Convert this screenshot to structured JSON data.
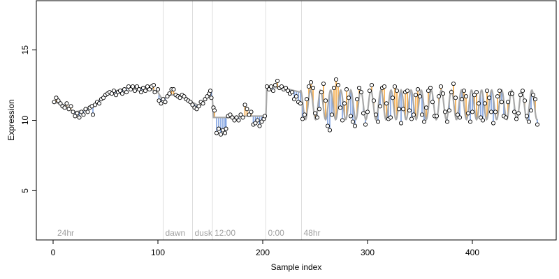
{
  "chart_data": {
    "type": "scatter",
    "xlabel": "Sample index",
    "ylabel": "Expression",
    "xlim": [
      -16,
      480
    ],
    "ylim": [
      1.5,
      18.5
    ],
    "x_ticks": [
      0,
      100,
      200,
      300,
      400
    ],
    "y_ticks": [
      5,
      10,
      15
    ],
    "grid": false,
    "colors": {
      "fitted_line": "#a8a8a8",
      "below_fit_segment": "#7b9fe0",
      "above_fit_segment": "#f4a640",
      "marker_edge": "#000000",
      "marker_fill": "#ffffff",
      "annotation_line": "#dedede",
      "annotation_text": "#a0a0a0"
    },
    "annotations": [
      {
        "label": "24hr",
        "x": 2,
        "line": false
      },
      {
        "label": "dawn",
        "x": 105,
        "line": true
      },
      {
        "label": "dusk",
        "x": 133,
        "line": true
      },
      {
        "label": "12:00",
        "x": 152,
        "line": true
      },
      {
        "label": "0:00",
        "x": 203,
        "line": true
      },
      {
        "label": "48hr",
        "x": 237,
        "line": true
      }
    ],
    "series": [
      {
        "fitted_segments": [
          {
            "x": [
              1,
              10,
              20,
              30,
              40,
              50,
              60,
              70,
              80,
              90,
              100,
              104,
              112,
              120,
              130,
              140,
              150
            ],
            "y": [
              11.3,
              11.1,
              10.6,
              10.7,
              11.2,
              11.8,
              12.1,
              12.3,
              12.3,
              12.3,
              12.0,
              11.5,
              11.8,
              11.8,
              11.4,
              11.0,
              11.9
            ]
          },
          {
            "x": [
              152,
              153,
              170,
              185,
              195,
              203
            ],
            "y": [
              11.5,
              10.2,
              10.2,
              10.3,
              10.3,
              10.3
            ]
          },
          {
            "x": [
              203,
              204,
              215,
              225,
              236
            ],
            "y": [
              10.3,
              12.4,
              12.3,
              12.2,
              12.0
            ]
          }
        ],
        "oscillation": {
          "x_start": 236,
          "x_end": 462,
          "period": 9.6,
          "center": 11.1,
          "amplitude": 1.05
        },
        "points": [
          [
            1,
            11.3
          ],
          [
            3,
            11.6
          ],
          [
            5,
            11.4
          ],
          [
            7,
            11.2
          ],
          [
            9,
            11.0
          ],
          [
            11,
            10.9
          ],
          [
            13,
            11.2
          ],
          [
            15,
            10.8
          ],
          [
            17,
            11.0
          ],
          [
            19,
            10.6
          ],
          [
            21,
            10.3
          ],
          [
            23,
            10.5
          ],
          [
            25,
            10.2
          ],
          [
            27,
            10.6
          ],
          [
            29,
            10.4
          ],
          [
            31,
            10.8
          ],
          [
            33,
            10.6
          ],
          [
            35,
            10.9
          ],
          [
            37,
            11.0
          ],
          [
            38,
            10.4
          ],
          [
            40,
            11.1
          ],
          [
            42,
            11.3
          ],
          [
            44,
            11.2
          ],
          [
            46,
            11.5
          ],
          [
            48,
            11.6
          ],
          [
            50,
            11.8
          ],
          [
            52,
            11.9
          ],
          [
            54,
            12.0
          ],
          [
            56,
            11.9
          ],
          [
            58,
            12.1
          ],
          [
            60,
            11.8
          ],
          [
            62,
            12.0
          ],
          [
            64,
            12.1
          ],
          [
            66,
            11.9
          ],
          [
            68,
            12.2
          ],
          [
            70,
            12.0
          ],
          [
            72,
            12.4
          ],
          [
            74,
            12.2
          ],
          [
            76,
            12.4
          ],
          [
            78,
            12.1
          ],
          [
            80,
            12.4
          ],
          [
            82,
            12.2
          ],
          [
            84,
            12.0
          ],
          [
            86,
            12.3
          ],
          [
            88,
            12.1
          ],
          [
            90,
            12.4
          ],
          [
            92,
            12.2
          ],
          [
            94,
            12.4
          ],
          [
            96,
            12.5
          ],
          [
            97,
            12.0
          ],
          [
            100,
            12.2
          ],
          [
            101,
            11.4
          ],
          [
            103,
            11.2
          ],
          [
            105,
            11.5
          ],
          [
            107,
            11.3
          ],
          [
            109,
            11.7
          ],
          [
            111,
            11.9
          ],
          [
            113,
            12.2
          ],
          [
            115,
            12.2
          ],
          [
            117,
            11.8
          ],
          [
            119,
            11.7
          ],
          [
            121,
            11.6
          ],
          [
            123,
            11.8
          ],
          [
            125,
            11.7
          ],
          [
            127,
            11.5
          ],
          [
            129,
            11.4
          ],
          [
            131,
            11.3
          ],
          [
            133,
            11.1
          ],
          [
            135,
            10.9
          ],
          [
            137,
            10.8
          ],
          [
            139,
            11.0
          ],
          [
            141,
            11.3
          ],
          [
            143,
            11.2
          ],
          [
            145,
            11.5
          ],
          [
            147,
            11.7
          ],
          [
            149,
            11.9
          ],
          [
            150,
            12.1
          ],
          [
            151,
            11.6
          ],
          [
            153,
            10.9
          ],
          [
            154,
            10.7
          ],
          [
            156,
            9.1
          ],
          [
            158,
            9.4
          ],
          [
            160,
            9.0
          ],
          [
            162,
            9.3
          ],
          [
            164,
            9.1
          ],
          [
            165,
            9.4
          ],
          [
            167,
            10.3
          ],
          [
            169,
            10.4
          ],
          [
            171,
            10.2
          ],
          [
            173,
            10.0
          ],
          [
            175,
            10.2
          ],
          [
            177,
            10.0
          ],
          [
            179,
            10.4
          ],
          [
            181,
            10.2
          ],
          [
            183,
            11.1
          ],
          [
            185,
            10.8
          ],
          [
            187,
            10.4
          ],
          [
            189,
            10.6
          ],
          [
            191,
            9.7
          ],
          [
            193,
            9.8
          ],
          [
            195,
            10.0
          ],
          [
            197,
            9.6
          ],
          [
            199,
            9.9
          ],
          [
            201,
            10.1
          ],
          [
            202,
            10.3
          ],
          [
            204,
            12.4
          ],
          [
            206,
            12.2
          ],
          [
            208,
            12.4
          ],
          [
            210,
            12.1
          ],
          [
            212,
            12.5
          ],
          [
            214,
            12.8
          ],
          [
            216,
            12.3
          ],
          [
            218,
            12.4
          ],
          [
            220,
            12.2
          ],
          [
            222,
            12.3
          ],
          [
            224,
            12.1
          ],
          [
            226,
            11.9
          ],
          [
            228,
            12.0
          ],
          [
            230,
            11.5
          ],
          [
            232,
            11.7
          ],
          [
            234,
            11.3
          ],
          [
            236,
            11.2
          ],
          [
            238,
            10.1
          ],
          [
            240,
            10.4
          ],
          [
            242,
            11.5
          ],
          [
            244,
            12.4
          ],
          [
            246,
            12.7
          ],
          [
            248,
            12.3
          ],
          [
            250,
            10.5
          ],
          [
            252,
            10.2
          ],
          [
            254,
            10.8
          ],
          [
            256,
            12.0
          ],
          [
            258,
            12.6
          ],
          [
            260,
            11.4
          ],
          [
            262,
            9.6
          ],
          [
            264,
            9.3
          ],
          [
            266,
            10.4
          ],
          [
            268,
            12.3
          ],
          [
            270,
            12.9
          ],
          [
            272,
            12.5
          ],
          [
            274,
            10.9
          ],
          [
            276,
            10.0
          ],
          [
            278,
            11.2
          ],
          [
            280,
            12.2
          ],
          [
            282,
            11.6
          ],
          [
            284,
            10.3
          ],
          [
            286,
            9.9
          ],
          [
            288,
            9.6
          ],
          [
            290,
            11.5
          ],
          [
            292,
            12.3
          ],
          [
            294,
            12.0
          ],
          [
            296,
            10.5
          ],
          [
            298,
            9.7
          ],
          [
            300,
            10.6
          ],
          [
            302,
            12.1
          ],
          [
            304,
            12.5
          ],
          [
            306,
            11.4
          ],
          [
            308,
            10.4
          ],
          [
            310,
            9.9
          ],
          [
            312,
            11.0
          ],
          [
            314,
            12.3
          ],
          [
            316,
            12.4
          ],
          [
            318,
            11.2
          ],
          [
            320,
            10.1
          ],
          [
            322,
            10.2
          ],
          [
            324,
            11.6
          ],
          [
            326,
            12.4
          ],
          [
            328,
            12.1
          ],
          [
            330,
            10.8
          ],
          [
            332,
            9.8
          ],
          [
            334,
            10.8
          ],
          [
            336,
            12.0
          ],
          [
            338,
            12.1
          ],
          [
            340,
            10.7
          ],
          [
            342,
            10.1
          ],
          [
            344,
            10.4
          ],
          [
            346,
            11.8
          ],
          [
            348,
            12.2
          ],
          [
            350,
            11.7
          ],
          [
            352,
            10.4
          ],
          [
            354,
            9.9
          ],
          [
            356,
            10.9
          ],
          [
            358,
            12.1
          ],
          [
            360,
            12.3
          ],
          [
            362,
            11.3
          ],
          [
            364,
            10.3
          ],
          [
            366,
            10.3
          ],
          [
            368,
            11.7
          ],
          [
            370,
            12.4
          ],
          [
            372,
            11.9
          ],
          [
            374,
            10.6
          ],
          [
            376,
            9.9
          ],
          [
            378,
            10.7
          ],
          [
            380,
            12.0
          ],
          [
            382,
            12.6
          ],
          [
            384,
            11.6
          ],
          [
            386,
            10.4
          ],
          [
            388,
            10.2
          ],
          [
            390,
            11.5
          ],
          [
            392,
            12.1
          ],
          [
            394,
            11.7
          ],
          [
            396,
            10.5
          ],
          [
            398,
            9.9
          ],
          [
            400,
            10.6
          ],
          [
            402,
            11.8
          ],
          [
            404,
            12.0
          ],
          [
            406,
            11.2
          ],
          [
            408,
            10.2
          ],
          [
            410,
            10.0
          ],
          [
            412,
            11.2
          ],
          [
            414,
            12.1
          ],
          [
            416,
            11.6
          ],
          [
            418,
            10.6
          ],
          [
            420,
            9.8
          ],
          [
            422,
            10.6
          ],
          [
            424,
            11.7
          ],
          [
            426,
            12.1
          ],
          [
            428,
            11.3
          ],
          [
            430,
            10.3
          ],
          [
            432,
            10.2
          ],
          [
            434,
            11.3
          ],
          [
            436,
            11.9
          ],
          [
            438,
            11.9
          ],
          [
            440,
            10.6
          ],
          [
            442,
            10.1
          ],
          [
            444,
            10.5
          ],
          [
            446,
            11.8
          ],
          [
            448,
            12.1
          ],
          [
            450,
            11.4
          ],
          [
            452,
            10.3
          ],
          [
            454,
            9.9
          ],
          [
            456,
            10.7
          ],
          [
            458,
            11.8
          ],
          [
            460,
            11.5
          ],
          [
            462,
            9.7
          ]
        ]
      }
    ]
  }
}
